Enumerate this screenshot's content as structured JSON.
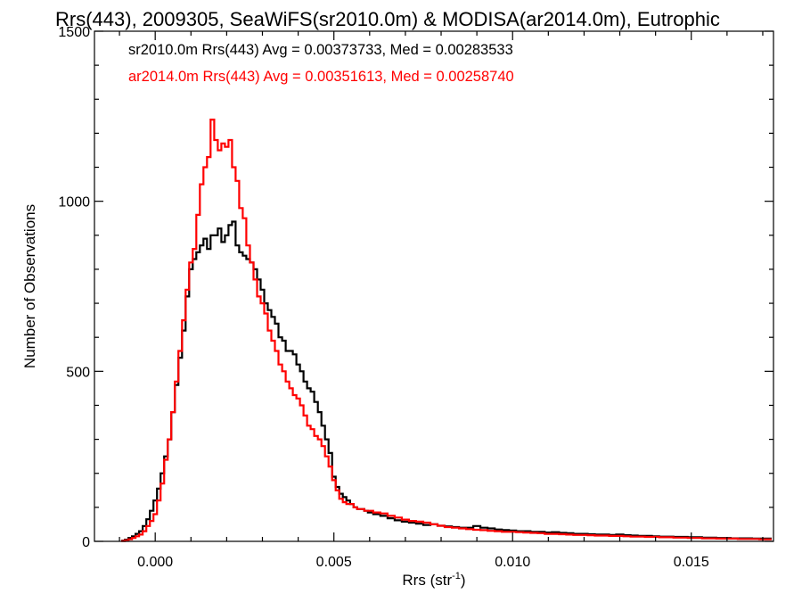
{
  "chart_data": {
    "type": "line",
    "title": "Rrs(443), 2009305, SeaWiFS(sr2010.0m) & MODISA(ar2014.0m), Eutrophic",
    "xlabel": "Rrs (str",
    "xlabel_sup": "-1",
    "xlabel_close": ")",
    "ylabel": "Number of Observations",
    "xlim": [
      -0.0017,
      0.0173
    ],
    "ylim": [
      0,
      1500
    ],
    "x_ticks": [
      0.0,
      0.005,
      0.01,
      0.015
    ],
    "x_tick_labels": [
      "0.000",
      "0.005",
      "0.010",
      "0.015"
    ],
    "y_ticks": [
      0,
      500,
      1000,
      1500
    ],
    "y_tick_labels": [
      "0",
      "500",
      "1000",
      "1500"
    ],
    "grid": false,
    "legend_position": "top-left",
    "series": [
      {
        "name": "sr2010.0m Rrs(443) Avg = 0.00373733, Med = 0.00283533",
        "color": "#000000",
        "x": [
          -0.0009,
          -0.0008,
          -0.0007,
          -0.0006,
          -0.0005,
          -0.0004,
          -0.0003,
          -0.0002,
          -0.0001,
          0.0,
          0.0001,
          0.0002,
          0.0003,
          0.0004,
          0.0005,
          0.0006,
          0.0007,
          0.0008,
          0.0009,
          0.001,
          0.0011,
          0.0012,
          0.0013,
          0.0014,
          0.0015,
          0.0016,
          0.0017,
          0.0018,
          0.0019,
          0.002,
          0.0021,
          0.0022,
          0.0023,
          0.0024,
          0.0025,
          0.0026,
          0.0027,
          0.0028,
          0.0029,
          0.003,
          0.0031,
          0.0032,
          0.0033,
          0.0034,
          0.0035,
          0.0036,
          0.0037,
          0.0038,
          0.0039,
          0.004,
          0.0041,
          0.0042,
          0.0043,
          0.0044,
          0.0045,
          0.0046,
          0.0047,
          0.0048,
          0.0049,
          0.005,
          0.0051,
          0.0052,
          0.0053,
          0.0054,
          0.0055,
          0.0056,
          0.0057,
          0.0058,
          0.0059,
          0.006,
          0.0062,
          0.0064,
          0.0066,
          0.0068,
          0.007,
          0.0072,
          0.0074,
          0.0076,
          0.0078,
          0.008,
          0.0082,
          0.0084,
          0.0086,
          0.0088,
          0.009,
          0.0092,
          0.0094,
          0.0096,
          0.0098,
          0.01,
          0.0102,
          0.0104,
          0.0106,
          0.0108,
          0.011,
          0.0112,
          0.0114,
          0.0116,
          0.0118,
          0.012,
          0.0122,
          0.0124,
          0.0126,
          0.0128,
          0.013,
          0.0132,
          0.0134,
          0.0136,
          0.0138,
          0.014,
          0.0142,
          0.0144,
          0.0146,
          0.0148,
          0.015,
          0.0152,
          0.0154,
          0.0156,
          0.0158,
          0.016,
          0.0162,
          0.0164,
          0.0166,
          0.0168,
          0.017,
          0.0172
        ],
        "values": [
          2,
          5,
          10,
          15,
          22,
          30,
          45,
          65,
          90,
          120,
          155,
          200,
          250,
          300,
          380,
          460,
          540,
          620,
          720,
          800,
          830,
          850,
          870,
          890,
          860,
          900,
          900,
          920,
          880,
          900,
          930,
          940,
          870,
          850,
          840,
          830,
          820,
          800,
          770,
          740,
          700,
          680,
          660,
          640,
          600,
          590,
          560,
          560,
          550,
          520,
          500,
          470,
          450,
          440,
          410,
          380,
          340,
          300,
          260,
          190,
          160,
          140,
          130,
          120,
          110,
          100,
          95,
          95,
          90,
          85,
          80,
          75,
          68,
          62,
          58,
          55,
          52,
          48,
          50,
          46,
          44,
          42,
          40,
          40,
          45,
          40,
          38,
          35,
          33,
          32,
          30,
          30,
          28,
          28,
          26,
          27,
          25,
          24,
          22,
          22,
          21,
          20,
          20,
          19,
          20,
          18,
          17,
          16,
          16,
          15,
          14,
          14,
          13,
          13,
          12,
          12,
          11,
          11,
          10,
          10,
          9,
          9,
          9,
          8,
          8,
          8
        ]
      },
      {
        "name": "ar2014.0m Rrs(443) Avg = 0.00351613, Med = 0.00258740",
        "color": "#ff0000",
        "x": [
          -0.0009,
          -0.0008,
          -0.0007,
          -0.0006,
          -0.0005,
          -0.0004,
          -0.0003,
          -0.0002,
          -0.0001,
          0.0,
          0.0001,
          0.0002,
          0.0003,
          0.0004,
          0.0005,
          0.0006,
          0.0007,
          0.0008,
          0.0009,
          0.001,
          0.0011,
          0.0012,
          0.0013,
          0.0014,
          0.0015,
          0.0016,
          0.0017,
          0.0018,
          0.0019,
          0.002,
          0.0021,
          0.0022,
          0.0023,
          0.0024,
          0.0025,
          0.0026,
          0.0027,
          0.0028,
          0.0029,
          0.003,
          0.0031,
          0.0032,
          0.0033,
          0.0034,
          0.0035,
          0.0036,
          0.0037,
          0.0038,
          0.0039,
          0.004,
          0.0041,
          0.0042,
          0.0043,
          0.0044,
          0.0045,
          0.0046,
          0.0047,
          0.0048,
          0.0049,
          0.005,
          0.0051,
          0.0052,
          0.0053,
          0.0054,
          0.0055,
          0.0056,
          0.0057,
          0.0058,
          0.0059,
          0.006,
          0.0062,
          0.0064,
          0.0066,
          0.0068,
          0.007,
          0.0072,
          0.0074,
          0.0076,
          0.0078,
          0.008,
          0.0082,
          0.0084,
          0.0086,
          0.0088,
          0.009,
          0.0092,
          0.0094,
          0.0096,
          0.0098,
          0.01,
          0.0102,
          0.0104,
          0.0106,
          0.0108,
          0.011,
          0.0112,
          0.0114,
          0.0116,
          0.0118,
          0.012,
          0.0122,
          0.0124,
          0.0126,
          0.0128,
          0.013,
          0.0132,
          0.0134,
          0.0136,
          0.0138,
          0.014,
          0.0142,
          0.0144,
          0.0146,
          0.0148,
          0.015,
          0.0152,
          0.0154,
          0.0156,
          0.0158,
          0.016,
          0.0162,
          0.0164,
          0.0166,
          0.0168,
          0.017,
          0.0172
        ],
        "values": [
          1,
          3,
          6,
          10,
          15,
          20,
          30,
          45,
          60,
          80,
          120,
          170,
          240,
          300,
          380,
          470,
          560,
          650,
          740,
          820,
          860,
          960,
          1050,
          1100,
          1130,
          1240,
          1180,
          1150,
          1170,
          1160,
          1180,
          1100,
          1060,
          980,
          950,
          870,
          820,
          770,
          720,
          700,
          670,
          620,
          590,
          560,
          520,
          500,
          470,
          450,
          430,
          420,
          400,
          370,
          340,
          330,
          310,
          300,
          280,
          250,
          220,
          180,
          150,
          125,
          115,
          110,
          110,
          100,
          95,
          95,
          90,
          90,
          85,
          82,
          75,
          70,
          64,
          60,
          58,
          55,
          50,
          46,
          42,
          40,
          38,
          36,
          34,
          33,
          31,
          30,
          28,
          28,
          27,
          26,
          25,
          24,
          22,
          22,
          21,
          20,
          19,
          19,
          18,
          17,
          17,
          16,
          16,
          15,
          14,
          14,
          13,
          13,
          12,
          12,
          11,
          11,
          10,
          10,
          9,
          9,
          8,
          8,
          8,
          7,
          7,
          7,
          6,
          6
        ]
      }
    ]
  }
}
